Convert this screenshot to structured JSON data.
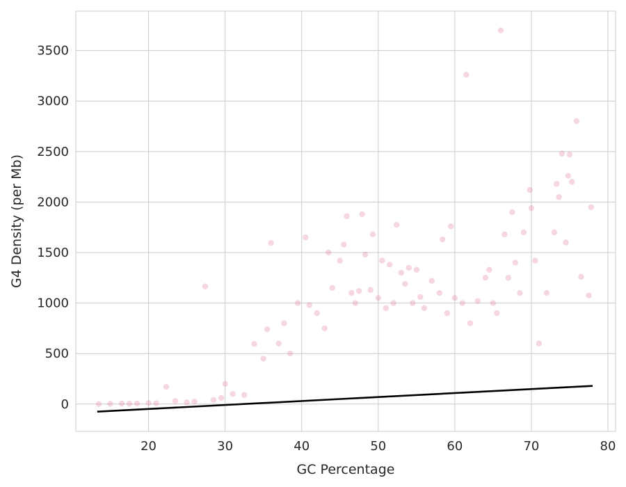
{
  "chart_data": {
    "type": "scatter",
    "title": "",
    "xlabel": "GC Percentage",
    "ylabel": "G4 Density (per Mb)",
    "xlim": [
      10.5,
      81
    ],
    "ylim": [
      -270,
      3890
    ],
    "x_ticks": [
      20,
      30,
      40,
      50,
      60,
      70,
      80
    ],
    "y_ticks": [
      0,
      500,
      1000,
      1500,
      2000,
      2500,
      3000,
      3500
    ],
    "grid": true,
    "colors": {
      "points": "#db6d92",
      "trend_line": "#000000",
      "grid": "#cccccc",
      "frame": "#cccccc"
    },
    "trend_line": {
      "x": [
        13.3,
        78
      ],
      "y": [
        -75,
        180
      ]
    },
    "series": [
      {
        "style": "scatter-translucent",
        "points": [
          [
            13.5,
            0
          ],
          [
            15,
            2
          ],
          [
            16.5,
            5
          ],
          [
            17.5,
            3
          ],
          [
            18.5,
            6
          ],
          [
            20,
            10
          ],
          [
            21,
            8
          ],
          [
            22.3,
            170
          ],
          [
            23.5,
            30
          ],
          [
            25,
            18
          ],
          [
            26,
            25
          ],
          [
            27.4,
            1165
          ],
          [
            28.5,
            40
          ],
          [
            29.5,
            60
          ],
          [
            30,
            200
          ],
          [
            31,
            100
          ],
          [
            32.5,
            90
          ],
          [
            33.8,
            595
          ],
          [
            35,
            450
          ],
          [
            35.5,
            740
          ],
          [
            36,
            1595
          ],
          [
            37,
            600
          ],
          [
            37.7,
            800
          ],
          [
            38.5,
            500
          ],
          [
            39.5,
            1000
          ],
          [
            40.5,
            1650
          ],
          [
            41,
            980
          ],
          [
            42,
            900
          ],
          [
            43,
            750
          ],
          [
            43.5,
            1500
          ],
          [
            44,
            1150
          ],
          [
            45,
            1420
          ],
          [
            45.5,
            1580
          ],
          [
            45.9,
            1860
          ],
          [
            46.5,
            1100
          ],
          [
            47,
            1000
          ],
          [
            47.5,
            1120
          ],
          [
            47.9,
            1880
          ],
          [
            48.3,
            1480
          ],
          [
            49,
            1130
          ],
          [
            49.3,
            1680
          ],
          [
            50,
            1050
          ],
          [
            50.5,
            1420
          ],
          [
            51,
            950
          ],
          [
            51.5,
            1380
          ],
          [
            52,
            1000
          ],
          [
            52.4,
            1775
          ],
          [
            53,
            1300
          ],
          [
            53.5,
            1190
          ],
          [
            54,
            1350
          ],
          [
            54.5,
            1000
          ],
          [
            55,
            1330
          ],
          [
            55.5,
            1060
          ],
          [
            56,
            950
          ],
          [
            57,
            1220
          ],
          [
            58,
            1100
          ],
          [
            58.4,
            1630
          ],
          [
            59,
            900
          ],
          [
            59.5,
            1760
          ],
          [
            60,
            1050
          ],
          [
            61,
            1000
          ],
          [
            61.5,
            3260
          ],
          [
            62,
            800
          ],
          [
            63,
            1020
          ],
          [
            64,
            1250
          ],
          [
            64.5,
            1330
          ],
          [
            65,
            1000
          ],
          [
            65.5,
            900
          ],
          [
            66,
            3700
          ],
          [
            66.5,
            1680
          ],
          [
            67,
            1250
          ],
          [
            67.5,
            1900
          ],
          [
            67.9,
            1400
          ],
          [
            68.5,
            1100
          ],
          [
            69,
            1700
          ],
          [
            69.8,
            2120
          ],
          [
            70,
            1940
          ],
          [
            70.5,
            1420
          ],
          [
            71,
            600
          ],
          [
            72,
            1100
          ],
          [
            73,
            1700
          ],
          [
            73.3,
            2180
          ],
          [
            73.6,
            2050
          ],
          [
            74,
            2480
          ],
          [
            74.5,
            1600
          ],
          [
            74.8,
            2260
          ],
          [
            75,
            2470
          ],
          [
            75.3,
            2200
          ],
          [
            75.9,
            2800
          ],
          [
            76.5,
            1260
          ],
          [
            77.5,
            1075
          ],
          [
            77.8,
            1950
          ]
        ]
      }
    ]
  }
}
